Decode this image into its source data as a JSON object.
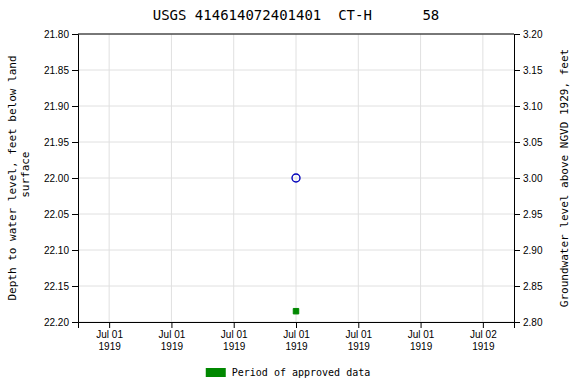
{
  "chart_data": {
    "type": "scatter",
    "title": "USGS 414614072401401  CT-H      58",
    "y_label": "Depth to water level, feet below land\n surface",
    "y2_label": "Groundwater level above NGVD 1929, feet",
    "categories": [
      "Jul 01\n1919",
      "Jul 01\n1919",
      "Jul 01\n1919",
      "Jul 01\n1919",
      "Jul 01\n1919",
      "Jul 01\n1919",
      "Jul 02\n1919"
    ],
    "series": [
      {
        "color": "#0000bb",
        "marker": "open-circle",
        "values": [
          null,
          null,
          null,
          22.0,
          null,
          null,
          null
        ]
      },
      {
        "name": "Period of approved data",
        "color": "#008800",
        "marker": "square",
        "values": [
          null,
          null,
          null,
          22.185,
          null,
          null,
          null
        ]
      }
    ],
    "ylim": [
      22.2,
      21.8
    ],
    "yticks": [
      {
        "value": 21.8,
        "label": "21.80"
      },
      {
        "value": 21.85,
        "label": "21.85"
      },
      {
        "value": 21.9,
        "label": "21.90"
      },
      {
        "value": 21.95,
        "label": "21.95"
      },
      {
        "value": 22.0,
        "label": "22.00"
      },
      {
        "value": 22.05,
        "label": "22.05"
      },
      {
        "value": 22.1,
        "label": "22.10"
      },
      {
        "value": 22.15,
        "label": "22.15"
      },
      {
        "value": 22.2,
        "label": "22.20"
      }
    ],
    "y2lim": [
      2.8,
      3.2
    ],
    "y2ticks": [
      {
        "value": 3.2,
        "label": "3.20"
      },
      {
        "value": 3.15,
        "label": "3.15"
      },
      {
        "value": 3.1,
        "label": "3.10"
      },
      {
        "value": 3.05,
        "label": "3.05"
      },
      {
        "value": 3.0,
        "label": "3.00"
      },
      {
        "value": 2.95,
        "label": "2.95"
      },
      {
        "value": 2.9,
        "label": "2.90"
      },
      {
        "value": 2.85,
        "label": "2.85"
      },
      {
        "value": 2.8,
        "label": "2.80"
      }
    ],
    "grid": true,
    "legend": "bottom"
  }
}
